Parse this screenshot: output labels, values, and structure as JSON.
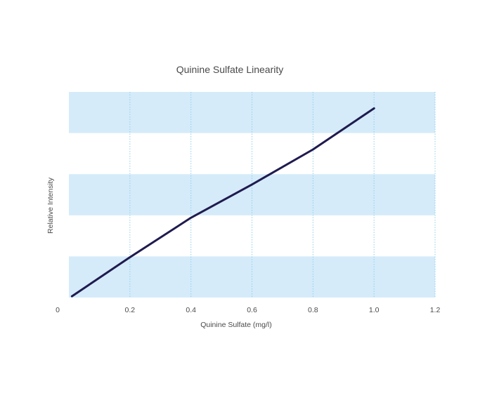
{
  "chart_data": {
    "type": "line",
    "title": "Quinine Sulfate Linearity",
    "xlabel": "Quinine Sulfate (mg/l)",
    "ylabel": "Relative Intensity",
    "xlim": [
      0,
      1.2
    ],
    "ylim": [
      0,
      5
    ],
    "x_ticks": [
      "0",
      "0.2",
      "0.4",
      "0.6",
      "0.8",
      "1.0",
      "1.2"
    ],
    "x_tick_values": [
      0,
      0.2,
      0.4,
      0.6,
      0.8,
      1.0,
      1.2
    ],
    "y_ticks_shown": false,
    "grid": {
      "vertical": true,
      "horizontal_bands": true
    },
    "band_color": "#d5ebfa",
    "grid_color": "#8fd0ec",
    "series": [
      {
        "color": "#1f1b4f",
        "x": [
          0.01,
          0.2,
          0.4,
          0.6,
          0.8,
          1.0
        ],
        "y": [
          0.03,
          0.98,
          1.94,
          2.75,
          3.6,
          4.6
        ]
      }
    ]
  }
}
